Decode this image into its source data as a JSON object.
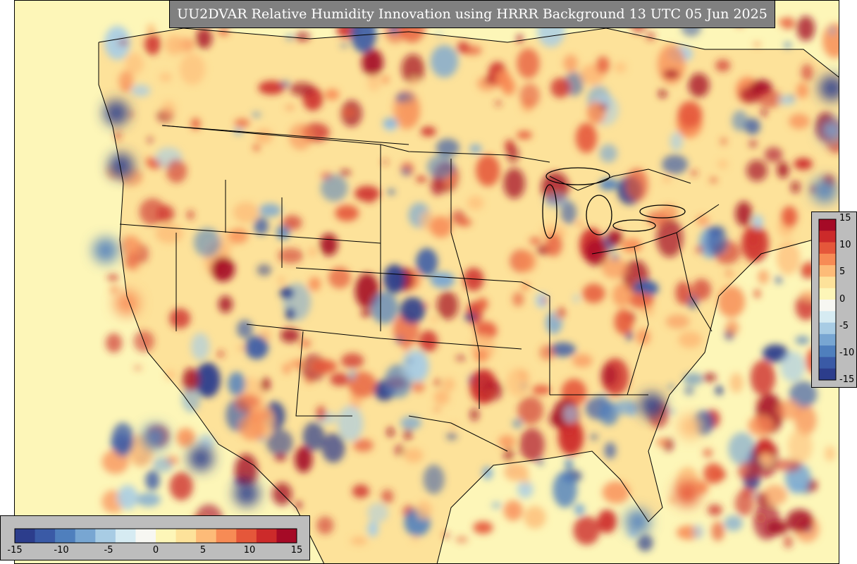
{
  "title": "UU2DVAR Relative Humidity Innovation using HRRR Background 13 UTC 05 Jun 2025",
  "colorbar": {
    "min": -15,
    "max": 15,
    "vertical_ticks": [
      "15",
      "10",
      "5",
      "0",
      "-5",
      "-10",
      "-15"
    ],
    "horizontal_ticks": [
      "-15",
      "-10",
      "-5",
      "0",
      "5",
      "10",
      "15"
    ],
    "colors": [
      "#2c3d8c",
      "#3a5aa6",
      "#4f7fbd",
      "#78a6d2",
      "#a8cce4",
      "#d6ebf2",
      "#f7f7f2",
      "#fdf6b8",
      "#fde29a",
      "#fdbb78",
      "#f78b55",
      "#e5573a",
      "#cc2a2a",
      "#a50a26"
    ]
  },
  "map": {
    "ocean_color": "#fdf6b8",
    "dry_color": "#c8102e",
    "moist_color": "#2b4fa0",
    "boundary_color": "#000000"
  }
}
